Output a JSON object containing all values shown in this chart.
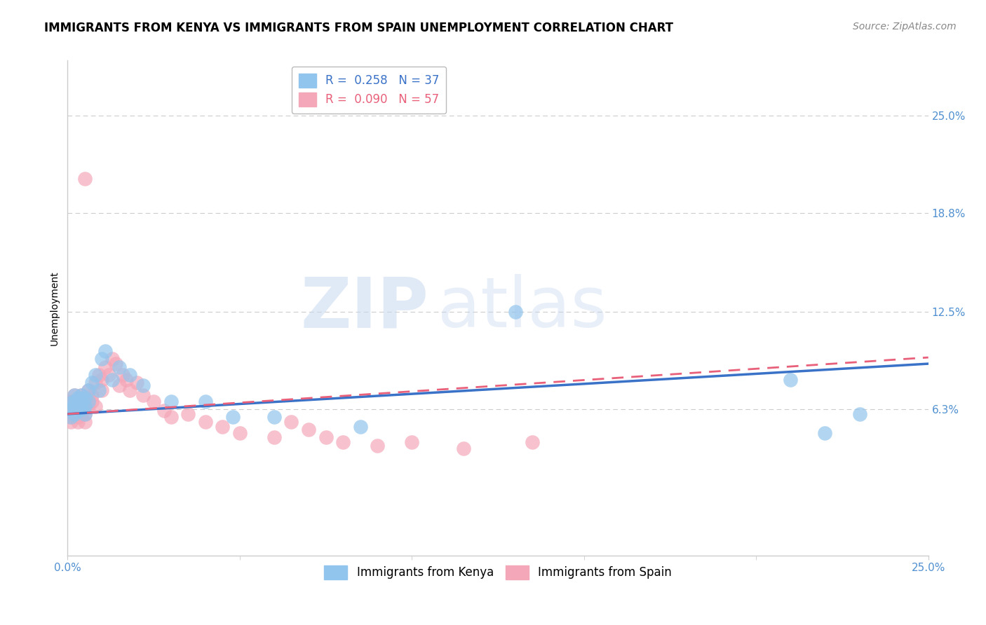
{
  "title": "IMMIGRANTS FROM KENYA VS IMMIGRANTS FROM SPAIN UNEMPLOYMENT CORRELATION CHART",
  "source": "Source: ZipAtlas.com",
  "ylabel": "Unemployment",
  "ytick_labels": [
    "6.3%",
    "12.5%",
    "18.8%",
    "25.0%"
  ],
  "ytick_values": [
    0.063,
    0.125,
    0.188,
    0.25
  ],
  "xmin": 0.0,
  "xmax": 0.25,
  "ymin": -0.03,
  "ymax": 0.285,
  "legend_kenya": "R =  0.258   N = 37",
  "legend_spain": "R =  0.090   N = 57",
  "legend_bottom_kenya": "Immigrants from Kenya",
  "legend_bottom_spain": "Immigrants from Spain",
  "kenya_color": "#92c5ed",
  "spain_color": "#f4a7b9",
  "kenya_line_color": "#3a72c8",
  "spain_line_color": "#e8607a",
  "watermark_zip": "ZIP",
  "watermark_atlas": "atlas",
  "kenya_x": [
    0.001,
    0.001,
    0.001,
    0.002,
    0.002,
    0.002,
    0.002,
    0.003,
    0.003,
    0.003,
    0.003,
    0.004,
    0.004,
    0.004,
    0.005,
    0.005,
    0.005,
    0.006,
    0.006,
    0.007,
    0.008,
    0.009,
    0.01,
    0.011,
    0.013,
    0.015,
    0.018,
    0.022,
    0.03,
    0.04,
    0.048,
    0.06,
    0.085,
    0.13,
    0.21,
    0.22,
    0.23
  ],
  "kenya_y": [
    0.063,
    0.058,
    0.067,
    0.065,
    0.06,
    0.068,
    0.072,
    0.064,
    0.062,
    0.066,
    0.07,
    0.063,
    0.068,
    0.072,
    0.06,
    0.065,
    0.07,
    0.075,
    0.068,
    0.08,
    0.085,
    0.075,
    0.095,
    0.1,
    0.082,
    0.09,
    0.085,
    0.078,
    0.068,
    0.068,
    0.058,
    0.058,
    0.052,
    0.125,
    0.082,
    0.048,
    0.06
  ],
  "spain_x": [
    0.001,
    0.001,
    0.001,
    0.001,
    0.001,
    0.002,
    0.002,
    0.002,
    0.002,
    0.003,
    0.003,
    0.003,
    0.003,
    0.004,
    0.004,
    0.004,
    0.004,
    0.005,
    0.005,
    0.005,
    0.005,
    0.006,
    0.006,
    0.006,
    0.007,
    0.007,
    0.008,
    0.008,
    0.009,
    0.01,
    0.01,
    0.011,
    0.012,
    0.013,
    0.014,
    0.015,
    0.016,
    0.017,
    0.018,
    0.02,
    0.022,
    0.025,
    0.028,
    0.03,
    0.035,
    0.04,
    0.045,
    0.05,
    0.06,
    0.065,
    0.07,
    0.075,
    0.08,
    0.09,
    0.1,
    0.115,
    0.135
  ],
  "spain_y": [
    0.06,
    0.055,
    0.063,
    0.068,
    0.058,
    0.065,
    0.06,
    0.068,
    0.072,
    0.062,
    0.058,
    0.055,
    0.068,
    0.063,
    0.072,
    0.06,
    0.068,
    0.065,
    0.055,
    0.06,
    0.21,
    0.07,
    0.065,
    0.075,
    0.068,
    0.072,
    0.08,
    0.065,
    0.085,
    0.075,
    0.082,
    0.09,
    0.085,
    0.095,
    0.092,
    0.078,
    0.085,
    0.082,
    0.075,
    0.08,
    0.072,
    0.068,
    0.062,
    0.058,
    0.06,
    0.055,
    0.052,
    0.048,
    0.045,
    0.055,
    0.05,
    0.045,
    0.042,
    0.04,
    0.042,
    0.038,
    0.042
  ],
  "kenya_trend_x": [
    0.0,
    0.25
  ],
  "kenya_trend_y": [
    0.06,
    0.092
  ],
  "spain_trend_x": [
    0.0,
    0.25
  ],
  "spain_trend_y": [
    0.06,
    0.096
  ],
  "grid_color": "#cccccc",
  "background_color": "#ffffff",
  "title_fontsize": 12,
  "axis_label_fontsize": 10,
  "tick_fontsize": 11,
  "legend_fontsize": 12,
  "source_fontsize": 10
}
